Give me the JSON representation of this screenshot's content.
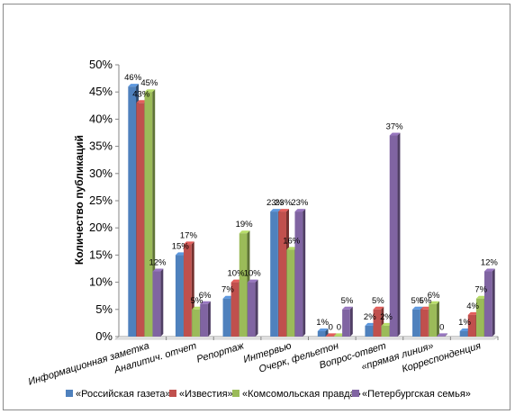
{
  "chart_data": {
    "type": "bar",
    "title": "",
    "xlabel": "",
    "ylabel": "Количество публикаций",
    "ylim": [
      0,
      50
    ],
    "y_ticks": [
      "0%",
      "5%",
      "10%",
      "15%",
      "20%",
      "25%",
      "30%",
      "35%",
      "40%",
      "45%",
      "50%"
    ],
    "grid": false,
    "legend_position": "bottom",
    "categories": [
      "Информационная заметка",
      "Аналитич. отчет",
      "Репортаж",
      "Интервью",
      "Очерк, фельетон",
      "Вопрос-ответ",
      "«прямая линия»",
      "Корреспонденция"
    ],
    "series": [
      {
        "name": "«Российская газета»",
        "color": "#4f81bd",
        "values": [
          46,
          15,
          7,
          23,
          1,
          2,
          5,
          1
        ],
        "labels": [
          "46%",
          "15%",
          "7%",
          "23%",
          "1%",
          "2%",
          "5%",
          "1%"
        ]
      },
      {
        "name": "«Известия»",
        "color": "#c0504d",
        "values": [
          43,
          17,
          10,
          23,
          0,
          5,
          5,
          4
        ],
        "labels": [
          "43%",
          "17%",
          "10%",
          "23%",
          "0",
          "5%",
          "5%",
          "4%"
        ]
      },
      {
        "name": "«Комсомольская правда»",
        "color": "#9bbb59",
        "values": [
          45,
          5,
          19,
          16,
          0,
          2,
          6,
          7
        ],
        "labels": [
          "45%",
          "5%",
          "19%",
          "16%",
          "0",
          "2%",
          "6%",
          "7%"
        ]
      },
      {
        "name": "«Петербургская семья»",
        "color": "#8064a2",
        "values": [
          12,
          6,
          10,
          23,
          5,
          37,
          0,
          12
        ],
        "labels": [
          "12%",
          "6%",
          "10%",
          "23%",
          "5%",
          "37%",
          "0",
          "12%"
        ]
      }
    ]
  }
}
